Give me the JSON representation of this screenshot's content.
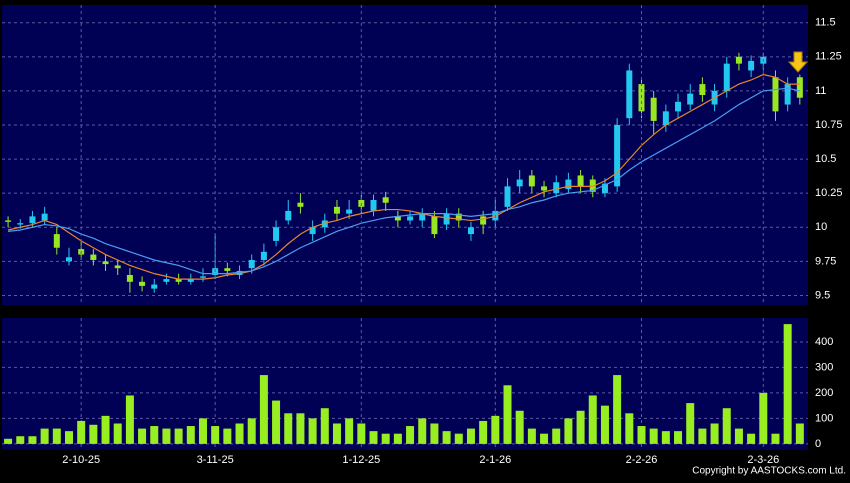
{
  "chart_data": [
    {
      "type": "candlestick",
      "open": [
        10.05,
        10.02,
        10.03,
        10.05,
        9.95,
        9.75,
        9.84,
        9.8,
        9.75,
        9.72,
        9.65,
        9.6,
        9.55,
        9.6,
        9.62,
        9.6,
        9.63,
        9.65,
        9.7,
        9.65,
        9.7,
        9.76,
        9.9,
        10.05,
        10.18,
        9.95,
        10.0,
        10.15,
        10.1,
        10.2,
        10.12,
        10.22,
        10.08,
        10.05,
        10.05,
        10.08,
        10.02,
        10.1,
        9.95,
        10.08,
        10.05,
        10.15,
        10.3,
        10.38,
        10.3,
        10.25,
        10.28,
        10.38,
        10.35,
        10.25,
        10.3,
        10.8,
        11.05,
        10.95,
        10.75,
        10.85,
        10.9,
        11.05,
        10.9,
        11.0,
        11.25,
        11.15,
        11.2,
        11.1,
        10.9,
        11.1
      ],
      "high": [
        10.08,
        10.06,
        10.12,
        10.15,
        10.0,
        9.85,
        9.9,
        9.84,
        9.8,
        9.76,
        9.7,
        9.64,
        9.62,
        9.66,
        9.66,
        9.66,
        9.7,
        9.95,
        9.74,
        9.72,
        9.8,
        9.88,
        10.05,
        10.2,
        10.25,
        10.05,
        10.1,
        10.2,
        10.2,
        10.24,
        10.24,
        10.26,
        10.12,
        10.12,
        10.14,
        10.12,
        10.14,
        10.14,
        10.04,
        10.12,
        10.2,
        10.36,
        10.42,
        10.42,
        10.34,
        10.38,
        10.4,
        10.42,
        10.38,
        10.36,
        10.8,
        11.2,
        11.1,
        11.0,
        10.9,
        10.98,
        11.05,
        11.1,
        11.05,
        11.25,
        11.28,
        11.26,
        11.28,
        11.15,
        11.1,
        11.12
      ],
      "low": [
        10.0,
        9.99,
        10.0,
        10.02,
        9.8,
        9.72,
        9.76,
        9.72,
        9.68,
        9.65,
        9.52,
        9.53,
        9.52,
        9.58,
        9.58,
        9.58,
        9.6,
        9.62,
        9.64,
        9.62,
        9.66,
        9.72,
        9.86,
        10.02,
        10.1,
        9.9,
        9.96,
        10.05,
        10.06,
        10.1,
        10.08,
        10.12,
        10.0,
        10.02,
        10.0,
        9.92,
        9.98,
        10.0,
        9.9,
        9.95,
        10.0,
        10.12,
        10.25,
        10.25,
        10.22,
        10.22,
        10.25,
        10.25,
        10.22,
        10.22,
        10.26,
        10.75,
        10.8,
        10.68,
        10.7,
        10.8,
        10.86,
        10.92,
        10.85,
        10.95,
        11.15,
        11.1,
        11.15,
        10.78,
        10.85,
        10.9
      ],
      "close": [
        10.04,
        10.03,
        10.08,
        10.1,
        9.85,
        9.78,
        9.8,
        9.76,
        9.73,
        9.7,
        9.6,
        9.57,
        9.58,
        9.62,
        9.6,
        9.62,
        9.64,
        9.7,
        9.68,
        9.68,
        9.76,
        9.82,
        10.0,
        10.12,
        10.15,
        10.0,
        10.05,
        10.1,
        10.13,
        10.15,
        10.2,
        10.18,
        10.05,
        10.08,
        10.1,
        9.95,
        10.1,
        10.05,
        10.0,
        10.02,
        10.12,
        10.3,
        10.35,
        10.3,
        10.27,
        10.33,
        10.35,
        10.3,
        10.26,
        10.32,
        10.75,
        11.15,
        10.85,
        10.78,
        10.85,
        10.92,
        10.98,
        10.97,
        11.0,
        11.2,
        11.2,
        11.22,
        11.25,
        10.85,
        11.05,
        10.95
      ],
      "up_color": "#22c8f0",
      "down_color": "#99e622",
      "series": [
        {
          "color": "#e8862a",
          "values": [
            9.98,
            10.0,
            10.02,
            10.05,
            10.02,
            9.96,
            9.9,
            9.85,
            9.8,
            9.76,
            9.72,
            9.69,
            9.66,
            9.64,
            9.62,
            9.62,
            9.62,
            9.63,
            9.65,
            9.66,
            9.68,
            9.73,
            9.8,
            9.88,
            9.95,
            10.0,
            10.03,
            10.05,
            10.08,
            10.1,
            10.12,
            10.13,
            10.13,
            10.12,
            10.1,
            10.08,
            10.07,
            10.06,
            10.05,
            10.06,
            10.08,
            10.13,
            10.18,
            10.22,
            10.26,
            10.28,
            10.3,
            10.3,
            10.3,
            10.34,
            10.4,
            10.5,
            10.6,
            10.68,
            10.75,
            10.8,
            10.85,
            10.9,
            10.95,
            11.0,
            11.05,
            11.08,
            11.12,
            11.1,
            11.05,
            11.05
          ]
        },
        {
          "color": "#4a9ef0",
          "values": [
            9.97,
            9.98,
            10.0,
            10.02,
            10.01,
            9.99,
            9.95,
            9.92,
            9.88,
            9.85,
            9.82,
            9.79,
            9.76,
            9.74,
            9.72,
            9.69,
            9.66,
            9.66,
            9.66,
            9.67,
            9.68,
            9.71,
            9.75,
            9.8,
            9.85,
            9.89,
            9.93,
            9.97,
            10.0,
            10.03,
            10.05,
            10.07,
            10.08,
            10.09,
            10.1,
            10.1,
            10.1,
            10.09,
            10.08,
            10.09,
            10.1,
            10.13,
            10.15,
            10.18,
            10.2,
            10.23,
            10.25,
            10.26,
            10.27,
            10.31,
            10.35,
            10.42,
            10.48,
            10.53,
            10.58,
            10.63,
            10.68,
            10.73,
            10.78,
            10.84,
            10.9,
            10.95,
            11.0,
            11.01,
            11.02,
            11.0
          ]
        }
      ],
      "ylim": [
        9.43,
        11.63
      ],
      "yticks": [
        9.5,
        9.75,
        10,
        10.25,
        10.5,
        10.75,
        11,
        11.25,
        11.5
      ],
      "grid": true
    },
    {
      "type": "bar",
      "categories": [
        null,
        null,
        null,
        null,
        null,
        null,
        "2-10-25",
        null,
        null,
        null,
        null,
        null,
        null,
        null,
        null,
        null,
        null,
        "3-11-25",
        null,
        null,
        null,
        null,
        null,
        null,
        null,
        null,
        null,
        null,
        null,
        "1-12-25",
        null,
        null,
        null,
        null,
        null,
        null,
        null,
        null,
        null,
        null,
        "2-1-26",
        null,
        null,
        null,
        null,
        null,
        null,
        null,
        null,
        null,
        null,
        null,
        "2-2-26",
        null,
        null,
        null,
        null,
        null,
        null,
        null,
        null,
        null,
        "2-3-26",
        null,
        null,
        null
      ],
      "values": [
        20,
        30,
        30,
        60,
        60,
        50,
        90,
        75,
        110,
        80,
        190,
        60,
        70,
        60,
        60,
        70,
        100,
        70,
        60,
        80,
        100,
        270,
        170,
        120,
        120,
        100,
        140,
        80,
        100,
        80,
        50,
        40,
        40,
        70,
        100,
        80,
        50,
        40,
        60,
        90,
        110,
        230,
        130,
        60,
        40,
        60,
        100,
        130,
        190,
        150,
        270,
        120,
        70,
        60,
        50,
        50,
        160,
        60,
        80,
        140,
        60,
        40,
        200,
        40,
        470,
        80
      ],
      "color": "#99ee22",
      "ylim": [
        -24,
        494
      ],
      "yticks": [
        0,
        100,
        200,
        300,
        400
      ],
      "grid": true
    }
  ],
  "footer": "Copyright by AASTOCKS.com Ltd."
}
